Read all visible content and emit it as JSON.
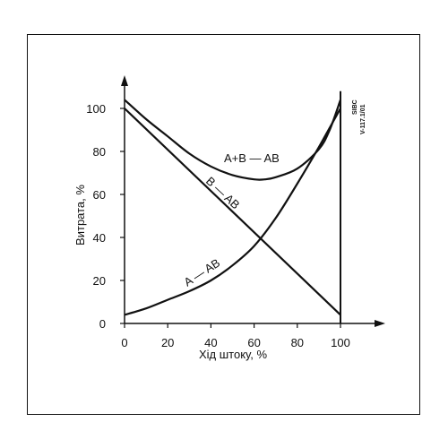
{
  "chart_data": {
    "type": "line",
    "xlabel": "Хід штоку, %",
    "ylabel": "Витрата, %",
    "xlim": [
      0,
      100
    ],
    "ylim": [
      0,
      100
    ],
    "x_ticks": [
      "0",
      "20",
      "40",
      "60",
      "80",
      "100"
    ],
    "y_ticks": [
      "0",
      "20",
      "40",
      "60",
      "80",
      "100"
    ],
    "code": [
      "SIBC",
      "V-117.1/01"
    ],
    "series": [
      {
        "name": "A+B — AB",
        "x": [
          0,
          10,
          20,
          30,
          40,
          50,
          60,
          65,
          70,
          80,
          90,
          95,
          100
        ],
        "y": [
          104,
          95,
          87,
          79,
          73,
          69,
          67,
          67,
          68,
          72,
          81,
          90,
          104
        ]
      },
      {
        "name": "B — AB",
        "x": [
          0,
          100
        ],
        "y": [
          100,
          4
        ]
      },
      {
        "name": "A — AB",
        "x": [
          0,
          10,
          20,
          30,
          40,
          50,
          60,
          70,
          80,
          90,
          95,
          100
        ],
        "y": [
          4,
          7,
          11,
          15,
          20,
          27,
          36,
          49,
          65,
          82,
          91,
          100
        ]
      }
    ],
    "vertical_line_at_x": 100,
    "vertical_line_top_y": 108,
    "grid": false,
    "legend": "inline labels on curves"
  }
}
